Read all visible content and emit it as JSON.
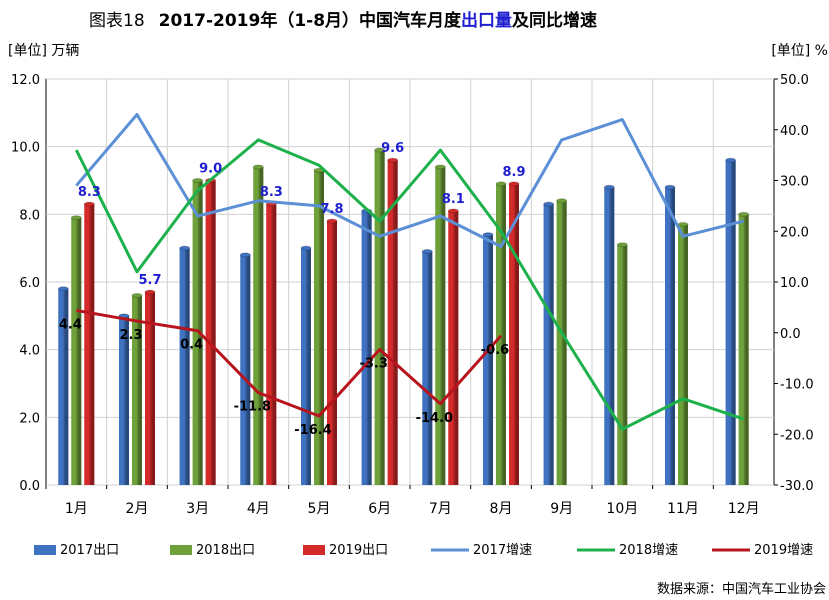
{
  "chart_data": {
    "type": "bar",
    "title_prefix": "图表18",
    "title_main": "2017-2019年（1-8月）中国汽车月度",
    "title_highlight": "出口量",
    "title_suffix": "及同比增速",
    "ylabel_left": "[单位] 万辆",
    "ylabel_right": "[单位] %",
    "categories": [
      "1月",
      "2月",
      "3月",
      "4月",
      "5月",
      "6月",
      "7月",
      "8月",
      "9月",
      "10月",
      "11月",
      "12月"
    ],
    "ylim_left": [
      0,
      12
    ],
    "ylim_right": [
      -30,
      50
    ],
    "left_ticks": [
      "0.0",
      "2.0",
      "4.0",
      "6.0",
      "8.0",
      "10.0",
      "12.0"
    ],
    "right_ticks": [
      "-30.0",
      "-20.0",
      "-10.0",
      "0.0",
      "10.0",
      "20.0",
      "30.0",
      "40.0",
      "50.0"
    ],
    "bar_series": [
      {
        "name": "2017出口",
        "color": "#3f73c2",
        "values": [
          5.8,
          5.0,
          7.0,
          6.8,
          7.0,
          8.1,
          6.9,
          7.4,
          8.3,
          8.8,
          8.8,
          9.6
        ]
      },
      {
        "name": "2018出口",
        "color": "#6fa13a",
        "values": [
          7.9,
          5.6,
          9.0,
          9.4,
          9.3,
          9.9,
          9.4,
          8.9,
          8.4,
          7.1,
          7.7,
          8.0
        ]
      },
      {
        "name": "2019出口",
        "color": "#d42a2a",
        "values": [
          8.3,
          5.7,
          9.0,
          8.3,
          7.8,
          9.6,
          8.1,
          8.9,
          null,
          null,
          null,
          null
        ]
      }
    ],
    "bar_labels_2019": [
      "8.3",
      "5.7",
      "9.0",
      "8.3",
      "7.8",
      "9.6",
      "8.1",
      "8.9"
    ],
    "line_series": [
      {
        "name": "2017增速",
        "color": "#5b8fd6",
        "values": [
          29,
          43,
          23,
          26,
          25,
          19,
          23,
          17,
          38,
          42,
          19,
          22
        ]
      },
      {
        "name": "2018增速",
        "color": "#1db14b",
        "values": [
          36,
          12,
          28,
          38,
          33,
          22,
          36,
          20,
          0,
          -19,
          -13,
          -17
        ]
      },
      {
        "name": "2019增速",
        "color": "#b8141e",
        "values": [
          4.4,
          2.3,
          0.4,
          -11.8,
          -16.4,
          -3.3,
          -14.0,
          -0.6,
          null,
          null,
          null,
          null
        ]
      }
    ],
    "line_labels_2019": [
      "4.4",
      "2.3",
      "0.4",
      "-11.8",
      "-16.4",
      "-3.3",
      "-14.0",
      "-0.6"
    ],
    "grid": true,
    "legend_placement": "bottom"
  },
  "source": "数据来源：中国汽车工业协会"
}
